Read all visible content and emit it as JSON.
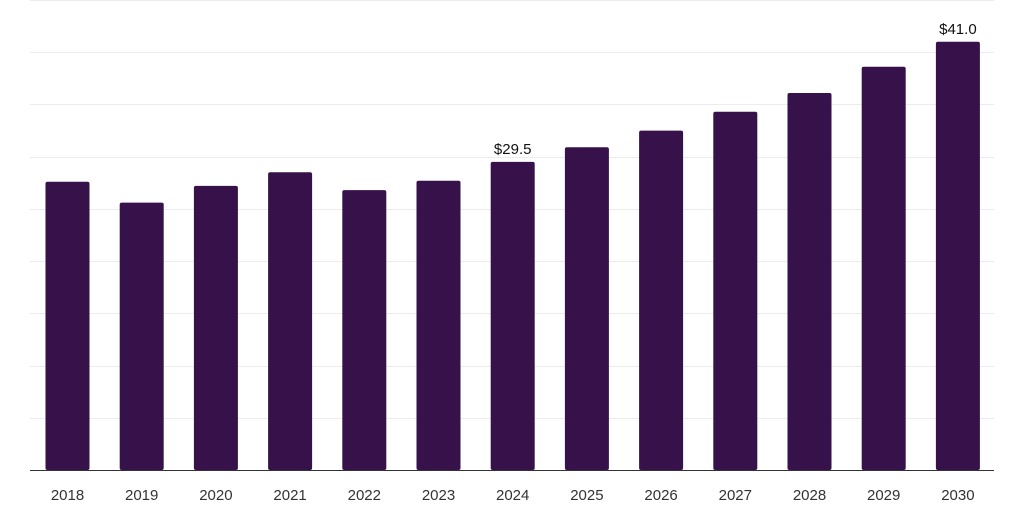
{
  "chart_data": {
    "type": "bar",
    "title": "",
    "xlabel": "",
    "ylabel": "",
    "categories": [
      "2018",
      "2019",
      "2020",
      "2021",
      "2022",
      "2023",
      "2024",
      "2025",
      "2026",
      "2027",
      "2028",
      "2029",
      "2030"
    ],
    "values": [
      27.6,
      25.6,
      27.2,
      28.5,
      26.8,
      27.7,
      29.5,
      30.9,
      32.5,
      34.3,
      36.1,
      38.6,
      41.0
    ],
    "data_labels": {
      "2024": "$29.5",
      "2030": "$41.0"
    },
    "ylim": [
      0,
      45
    ],
    "gridlines": true,
    "legend": "none",
    "bar_color": "#37114a"
  }
}
